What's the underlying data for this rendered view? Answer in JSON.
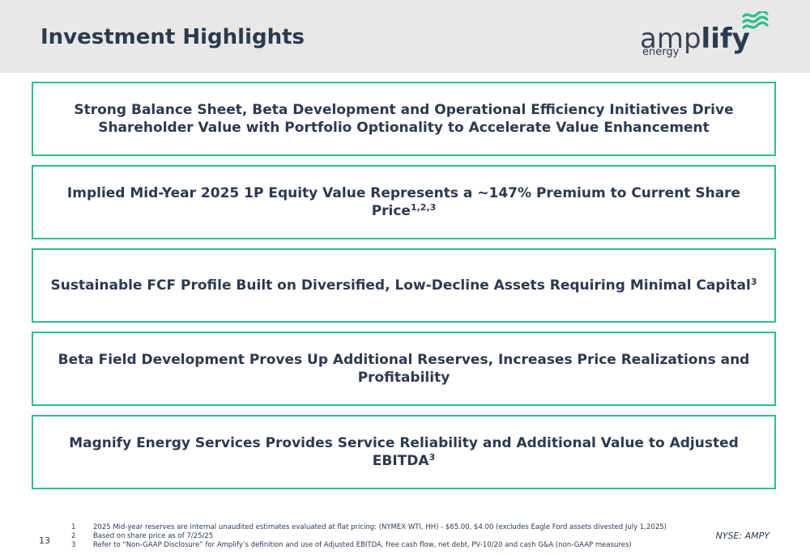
{
  "header": {
    "title": "Investment Highlights",
    "logo_text_thin": "amp",
    "logo_text_bold": "lify",
    "logo_sub": "energy",
    "logo_icon": "wave-icon",
    "logo_icon_color": "#2ebf88"
  },
  "highlights": [
    {
      "text": "Strong Balance Sheet, Beta Development and Operational Efficiency Initiatives Drive Shareholder Value with Portfolio Optionality to Accelerate Value Enhancement",
      "sup": ""
    },
    {
      "text": "Implied Mid-Year 2025 1P Equity Value Represents a ~147% Premium to Current Share Price",
      "sup": "1,2,3"
    },
    {
      "text": "Sustainable FCF Profile Built on Diversified, Low-Decline Assets Requiring Minimal Capital",
      "sup": "3"
    },
    {
      "text": "Beta Field Development Proves Up Additional Reserves, Increases Price Realizations and Profitability",
      "sup": ""
    },
    {
      "text": "Magnify Energy Services Provides Service Reliability and Additional Value to Adjusted EBITDA",
      "sup": "3"
    }
  ],
  "colors": {
    "border": "#2ebf88",
    "text": "#2c3a4f",
    "header_bg": "#e8e8e8"
  },
  "footer": {
    "page_number": "13",
    "footnotes": [
      {
        "num": "1",
        "text": "2025 Mid-year reserves are internal unaudited estimates evaluated at flat pricing: (NYMEX WTI, HH) - $65.00, $4.00 (excludes Eagle Ford assets divested July 1,2025)"
      },
      {
        "num": "2",
        "text": "Based on share price as of 7/25/25"
      },
      {
        "num": "3",
        "text": "Refer to “Non-GAAP Disclosure” for Amplify’s definition and use of Adjusted EBITDA, free cash flow, net debt, PV-10/20 and cash G&A (non-GAAP measures)"
      }
    ],
    "ticker": "NYSE: AMPY"
  }
}
